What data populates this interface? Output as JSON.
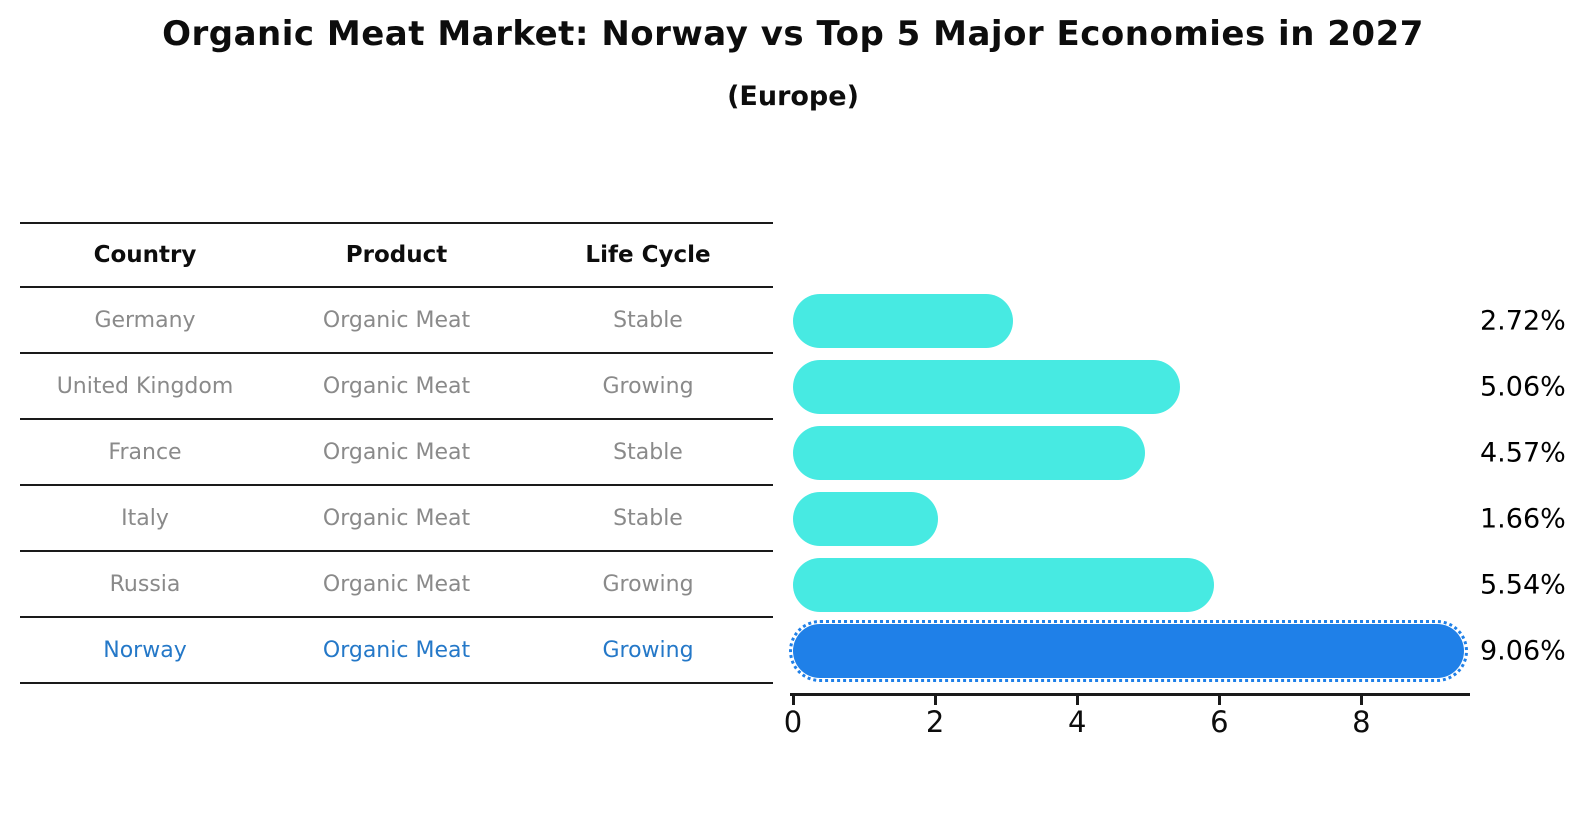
{
  "title": "Organic Meat Market: Norway vs Top 5 Major Economies in 2027",
  "subtitle": "(Europe)",
  "table": {
    "headers": [
      "Country",
      "Product",
      "Life Cycle"
    ],
    "rows": [
      {
        "country": "Germany",
        "product": "Organic Meat",
        "life_cycle": "Stable",
        "highlight": false
      },
      {
        "country": "United Kingdom",
        "product": "Organic Meat",
        "life_cycle": "Growing",
        "highlight": false
      },
      {
        "country": "France",
        "product": "Organic Meat",
        "life_cycle": "Stable",
        "highlight": false
      },
      {
        "country": "Italy",
        "product": "Organic Meat",
        "life_cycle": "Stable",
        "highlight": false
      },
      {
        "country": "Russia",
        "product": "Organic Meat",
        "life_cycle": "Growing",
        "highlight": false
      },
      {
        "country": "Norway",
        "product": "Organic Meat",
        "life_cycle": "Growing",
        "highlight": true
      }
    ]
  },
  "chart_data": {
    "type": "bar",
    "orientation": "horizontal",
    "title": "Organic Meat Market: Norway vs Top 5 Major Economies in 2027 (Europe)",
    "categories": [
      "Germany",
      "United Kingdom",
      "France",
      "Italy",
      "Russia",
      "Norway"
    ],
    "values": [
      2.72,
      5.06,
      4.57,
      1.66,
      5.54,
      9.06
    ],
    "value_labels": [
      "2.72%",
      "5.06%",
      "4.57%",
      "1.66%",
      "5.54%",
      "9.06%"
    ],
    "x_ticks": [
      0,
      2,
      4,
      6,
      8
    ],
    "xlim": [
      0,
      9.5
    ],
    "grid": false,
    "legend": "none",
    "highlight_index": 5,
    "colors": {
      "bar_default": "#47eae2",
      "bar_highlight": "#1f80e8",
      "highlight_text": "#2478c8",
      "row_text": "#8a8a8a",
      "axis": "#1a1a1a"
    }
  }
}
